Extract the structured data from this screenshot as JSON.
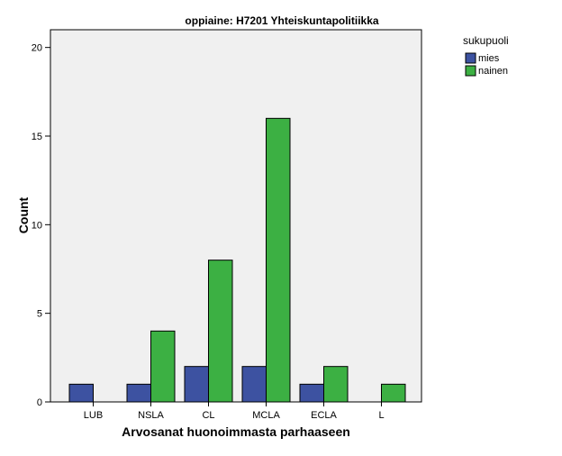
{
  "chart_data": {
    "type": "bar",
    "title": "oppiaine: H7201 Yhteiskuntapolitiikka",
    "xlabel": "Arvosanat huonoimmasta parhaaseen",
    "ylabel": "Count",
    "categories": [
      "LUB",
      "NSLA",
      "CL",
      "MCLA",
      "ECLA",
      "L"
    ],
    "ylim": [
      0,
      21
    ],
    "yticks": [
      0,
      5,
      10,
      15,
      20
    ],
    "grid": false,
    "legend": {
      "title": "sukupuoli",
      "placement": "right-top"
    },
    "series": [
      {
        "name": "mies",
        "color": "#3d52a1",
        "values": [
          1,
          1,
          2,
          2,
          1,
          0
        ]
      },
      {
        "name": "nainen",
        "color": "#3cb043",
        "values": [
          0,
          4,
          8,
          16,
          2,
          1
        ]
      }
    ],
    "plot_background": "#f0f0f0"
  }
}
